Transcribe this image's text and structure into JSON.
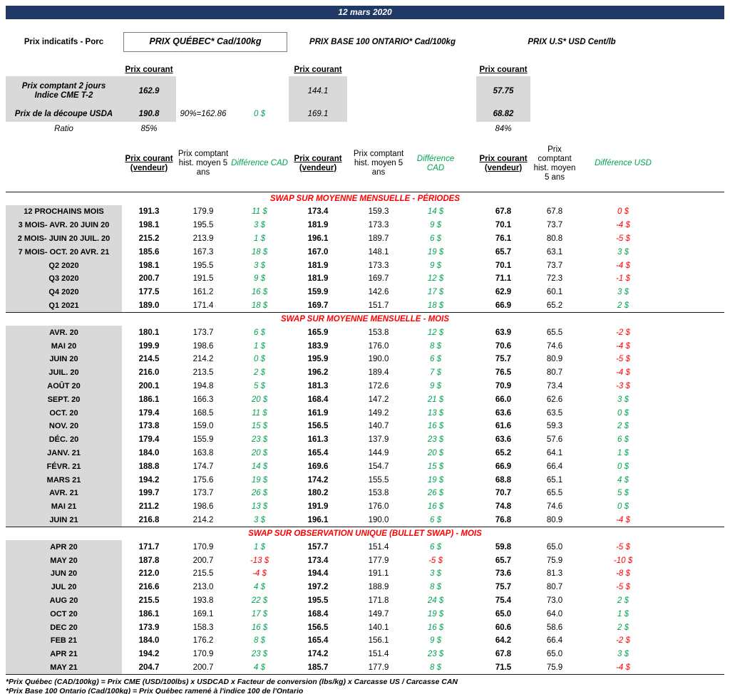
{
  "titlebar": {
    "date": "12 mars 2020"
  },
  "page": {
    "label": "Prix indicatifs - Porc"
  },
  "price_groups": [
    {
      "title": "PRIX QUÉBEC* Cad/100kg",
      "current": "Prix courant"
    },
    {
      "title": "PRIX BASE 100 ONTARIO* Cad/100kg",
      "current": "Prix courant"
    },
    {
      "title": "PRIX U.S* USD Cent/lb",
      "current": "Prix courant"
    }
  ],
  "spot": {
    "row1": {
      "label_line1": "Prix comptant 2 jours",
      "label_line2": "Indice CME T-2",
      "quebec": "162.9",
      "ontario": "144.1",
      "us": "57.75"
    },
    "row2": {
      "label": "Prix de la découpe USDA",
      "quebec": "190.8",
      "note": "90%=162.86",
      "diff": "0 $",
      "ontario": "169.1",
      "us": "68.82"
    },
    "ratio": {
      "label": "Ratio",
      "quebec": "85%",
      "us": "84%"
    }
  },
  "columns": {
    "seller": "Prix courant (vendeur)",
    "hist": "Prix comptant hist. moyen 5 ans",
    "diff_cad": "Différence CAD",
    "diff_usd": "Différence USD"
  },
  "sections": [
    {
      "title": "SWAP SUR MOYENNE MENSUELLE - PÉRIODES",
      "rows": [
        {
          "label": "12 PROCHAINS MOIS",
          "values": [
            "191.3",
            "179.9",
            "11 $",
            "173.4",
            "159.3",
            "14 $",
            "67.8",
            "67.8",
            "0 $"
          ],
          "force_red": [
            8
          ]
        },
        {
          "label": "3 MOIS- AVR. 20 JUIN 20",
          "values": [
            "198.1",
            "195.5",
            "3 $",
            "181.9",
            "173.3",
            "9 $",
            "70.1",
            "73.7",
            "-4 $"
          ]
        },
        {
          "label": "2 MOIS- JUIN 20 JUIL. 20",
          "values": [
            "215.2",
            "213.9",
            "1 $",
            "196.1",
            "189.7",
            "6 $",
            "76.1",
            "80.8",
            "-5 $"
          ]
        },
        {
          "label": "7 MOIS- OCT. 20 AVR. 21",
          "values": [
            "185.6",
            "167.3",
            "18 $",
            "167.0",
            "148.1",
            "19 $",
            "65.7",
            "63.1",
            "3 $"
          ]
        },
        {
          "label": "Q2 2020",
          "values": [
            "198.1",
            "195.5",
            "3 $",
            "181.9",
            "173.3",
            "9 $",
            "70.1",
            "73.7",
            "-4 $"
          ]
        },
        {
          "label": "Q3 2020",
          "values": [
            "200.7",
            "191.5",
            "9 $",
            "181.9",
            "169.7",
            "12 $",
            "71.1",
            "72.3",
            "-1 $"
          ]
        },
        {
          "label": "Q4 2020",
          "values": [
            "177.5",
            "161.2",
            "16 $",
            "159.9",
            "142.6",
            "17 $",
            "62.9",
            "60.1",
            "3 $"
          ]
        },
        {
          "label": "Q1 2021",
          "values": [
            "189.0",
            "171.4",
            "18 $",
            "169.7",
            "151.7",
            "18 $",
            "66.9",
            "65.2",
            "2 $"
          ]
        }
      ]
    },
    {
      "title": "SWAP SUR MOYENNE MENSUELLE - MOIS",
      "rows": [
        {
          "label": "AVR. 20",
          "values": [
            "180.1",
            "173.7",
            "6 $",
            "165.9",
            "153.8",
            "12 $",
            "63.9",
            "65.5",
            "-2 $"
          ]
        },
        {
          "label": "MAI 20",
          "values": [
            "199.9",
            "198.6",
            "1 $",
            "183.9",
            "176.0",
            "8 $",
            "70.6",
            "74.6",
            "-4 $"
          ]
        },
        {
          "label": "JUIN 20",
          "values": [
            "214.5",
            "214.2",
            "0 $",
            "195.9",
            "190.0",
            "6 $",
            "75.7",
            "80.9",
            "-5 $"
          ]
        },
        {
          "label": "JUIL. 20",
          "values": [
            "216.0",
            "213.5",
            "2 $",
            "196.2",
            "189.4",
            "7 $",
            "76.5",
            "80.7",
            "-4 $"
          ]
        },
        {
          "label": "AOÛT 20",
          "values": [
            "200.1",
            "194.8",
            "5 $",
            "181.3",
            "172.6",
            "9 $",
            "70.9",
            "73.4",
            "-3 $"
          ]
        },
        {
          "label": "SEPT. 20",
          "values": [
            "186.1",
            "166.3",
            "20 $",
            "168.4",
            "147.2",
            "21 $",
            "66.0",
            "62.6",
            "3 $"
          ]
        },
        {
          "label": "OCT. 20",
          "values": [
            "179.4",
            "168.5",
            "11 $",
            "161.9",
            "149.2",
            "13 $",
            "63.6",
            "63.5",
            "0 $"
          ]
        },
        {
          "label": "NOV. 20",
          "values": [
            "173.8",
            "159.0",
            "15 $",
            "156.5",
            "140.7",
            "16 $",
            "61.6",
            "59.3",
            "2 $"
          ]
        },
        {
          "label": "DÉC. 20",
          "values": [
            "179.4",
            "155.9",
            "23 $",
            "161.3",
            "137.9",
            "23 $",
            "63.6",
            "57.6",
            "6 $"
          ]
        },
        {
          "label": "JANV. 21",
          "values": [
            "184.0",
            "163.8",
            "20 $",
            "165.4",
            "144.9",
            "20 $",
            "65.2",
            "64.1",
            "1 $"
          ]
        },
        {
          "label": "FÉVR. 21",
          "values": [
            "188.8",
            "174.7",
            "14 $",
            "169.6",
            "154.7",
            "15 $",
            "66.9",
            "66.4",
            "0 $"
          ]
        },
        {
          "label": "MARS 21",
          "values": [
            "194.2",
            "175.6",
            "19 $",
            "174.2",
            "155.5",
            "19 $",
            "68.8",
            "65.1",
            "4 $"
          ]
        },
        {
          "label": "AVR. 21",
          "values": [
            "199.7",
            "173.7",
            "26 $",
            "180.2",
            "153.8",
            "26 $",
            "70.7",
            "65.5",
            "5 $"
          ]
        },
        {
          "label": "MAI 21",
          "values": [
            "211.2",
            "198.6",
            "13 $",
            "191.9",
            "176.0",
            "16 $",
            "74.8",
            "74.6",
            "0 $"
          ]
        },
        {
          "label": "JUIN 21",
          "values": [
            "216.8",
            "214.2",
            "3 $",
            "196.1",
            "190.0",
            "6 $",
            "76.8",
            "80.9",
            "-4 $"
          ]
        }
      ]
    },
    {
      "title": "SWAP SUR OBSERVATION UNIQUE (BULLET SWAP) - MOIS",
      "rows": [
        {
          "label": "APR 20",
          "values": [
            "171.7",
            "170.9",
            "1 $",
            "157.7",
            "151.4",
            "6 $",
            "59.8",
            "65.0",
            "-5 $"
          ]
        },
        {
          "label": "MAY 20",
          "values": [
            "187.8",
            "200.7",
            "-13 $",
            "173.4",
            "177.9",
            "-5 $",
            "65.7",
            "75.9",
            "-10 $"
          ]
        },
        {
          "label": "JUN 20",
          "values": [
            "212.0",
            "215.5",
            "-4 $",
            "194.4",
            "191.1",
            "3 $",
            "73.6",
            "81.3",
            "-8 $"
          ]
        },
        {
          "label": "JUL 20",
          "values": [
            "216.6",
            "213.0",
            "4 $",
            "197.2",
            "188.9",
            "8 $",
            "75.7",
            "80.7",
            "-5 $"
          ]
        },
        {
          "label": "AUG 20",
          "values": [
            "215.5",
            "193.8",
            "22 $",
            "195.5",
            "171.8",
            "24 $",
            "75.4",
            "73.0",
            "2 $"
          ]
        },
        {
          "label": "OCT 20",
          "values": [
            "186.1",
            "169.1",
            "17 $",
            "168.4",
            "149.7",
            "19 $",
            "65.0",
            "64.0",
            "1 $"
          ]
        },
        {
          "label": "DEC 20",
          "values": [
            "173.9",
            "158.3",
            "16 $",
            "156.5",
            "140.1",
            "16 $",
            "60.6",
            "58.6",
            "2 $"
          ]
        },
        {
          "label": "FEB 21",
          "values": [
            "184.0",
            "176.2",
            "8 $",
            "165.4",
            "156.1",
            "9 $",
            "64.2",
            "66.4",
            "-2 $"
          ]
        },
        {
          "label": "APR 21",
          "values": [
            "194.2",
            "170.9",
            "23 $",
            "174.2",
            "151.4",
            "23 $",
            "67.8",
            "65.0",
            "3 $"
          ]
        },
        {
          "label": "MAY 21",
          "values": [
            "204.7",
            "200.7",
            "4 $",
            "185.7",
            "177.9",
            "8 $",
            "71.5",
            "75.9",
            "-4 $"
          ]
        }
      ]
    }
  ],
  "footnotes": {
    "line1": "*Prix Québec (CAD/100kg) = Prix CME (USD/100lbs) x USDCAD x Facteur de conversion (lbs/kg) x Carcasse US / Carcasse CAN",
    "line2_partial": "*Prix Base 100 Ontario (Cad/100kg) = Prix Québec ramené à l'indice 100 de l'Ontario"
  },
  "colors": {
    "navy": "#1f3864",
    "gray": "#d9d9d9",
    "green": "#00a550",
    "red": "#ff0000"
  }
}
